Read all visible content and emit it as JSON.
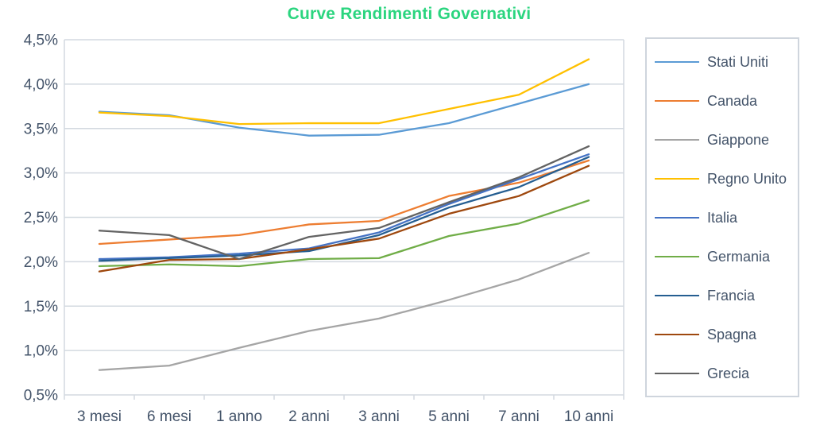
{
  "window": {
    "background": "#FFFFFF"
  },
  "chart_data": {
    "type": "line",
    "title": "Curve Rendimenti Governativi",
    "title_color": "#2BD57F",
    "text_color": "#44546A",
    "gridline_color": "#D3D9E0",
    "legend_border_color": "#CFD5DD",
    "background_color": "#FFFFFF",
    "xlabel": "",
    "ylabel": "",
    "categories": [
      "3 mesi",
      "6 mesi",
      "1 anno",
      "2 anni",
      "3 anni",
      "5 anni",
      "7 anni",
      "10 anni"
    ],
    "ylim": [
      0.5,
      4.5
    ],
    "ytick_step": 0.5,
    "ytick_labels": [
      "0,5%",
      "1,0%",
      "1,5%",
      "2,0%",
      "2,5%",
      "3,0%",
      "3,5%",
      "4,0%",
      "4,5%"
    ],
    "grid": true,
    "legend_position": "right",
    "series": [
      {
        "name": "Stati Uniti",
        "color": "#5B9BD5",
        "values": [
          3.69,
          3.65,
          3.51,
          3.42,
          3.43,
          3.56,
          3.78,
          4.0
        ]
      },
      {
        "name": "Canada",
        "color": "#ED7D31",
        "values": [
          2.2,
          2.25,
          2.3,
          2.42,
          2.46,
          2.74,
          2.89,
          3.14
        ]
      },
      {
        "name": "Giappone",
        "color": "#A5A5A5",
        "values": [
          0.78,
          0.83,
          1.03,
          1.22,
          1.36,
          1.57,
          1.8,
          2.1
        ]
      },
      {
        "name": "Regno Unito",
        "color": "#FFC000",
        "values": [
          3.68,
          3.64,
          3.55,
          3.56,
          3.56,
          3.72,
          3.88,
          4.28
        ]
      },
      {
        "name": "Italia",
        "color": "#4472C4",
        "values": [
          2.03,
          2.05,
          2.09,
          2.15,
          2.33,
          2.65,
          2.93,
          3.21
        ]
      },
      {
        "name": "Germania",
        "color": "#70AD47",
        "values": [
          1.95,
          1.97,
          1.95,
          2.03,
          2.04,
          2.29,
          2.43,
          2.69
        ]
      },
      {
        "name": "Francia",
        "color": "#255E91",
        "values": [
          2.01,
          2.04,
          2.07,
          2.12,
          2.3,
          2.61,
          2.84,
          3.18
        ]
      },
      {
        "name": "Spagna",
        "color": "#9E480E",
        "values": [
          1.89,
          2.02,
          2.03,
          2.14,
          2.26,
          2.54,
          2.74,
          3.08
        ]
      },
      {
        "name": "Grecia",
        "color": "#636363",
        "values": [
          2.35,
          2.3,
          2.03,
          2.28,
          2.38,
          2.67,
          2.95,
          3.3
        ]
      }
    ]
  }
}
